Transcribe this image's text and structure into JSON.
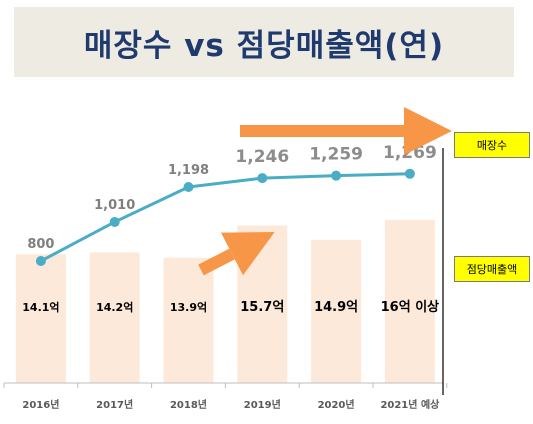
{
  "title": "매장수 vs 점당매출액(연)",
  "chart_data": {
    "type": "bar+line",
    "categories": [
      "2016년",
      "2017년",
      "2018년",
      "2019년",
      "2020년",
      "2021년 예상"
    ],
    "series": [
      {
        "name": "매장수",
        "type": "line",
        "values": [
          800,
          1010,
          1198,
          1246,
          1259,
          1269
        ],
        "labels": [
          "800",
          "1,010",
          "1,198",
          "1,246",
          "1,259",
          "1,269"
        ]
      },
      {
        "name": "점당매출액",
        "type": "bar",
        "values": [
          14.1,
          14.2,
          13.9,
          15.7,
          14.9,
          16
        ],
        "labels": [
          "14.1억",
          "14.2억",
          "13.9억",
          "15.7억",
          "14.9억",
          "16억 이상"
        ]
      }
    ],
    "legend": [
      "매장수",
      "점당매출액"
    ],
    "colors": {
      "bar": "#fde9d9",
      "line": "#4bacc6",
      "arrow": "#f79646",
      "legend_bg": "#ffff00",
      "title": "#1f3a6e"
    }
  }
}
